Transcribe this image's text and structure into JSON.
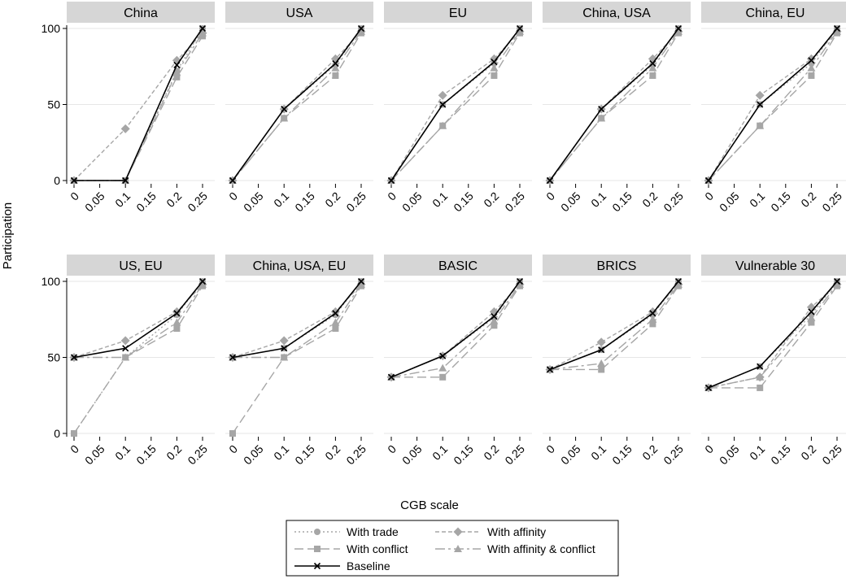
{
  "y_axis_label": "Participation",
  "x_axis_label": "CGB scale",
  "colors": {
    "panel_header": "#d6d6d6",
    "grid": "#e6e6e6",
    "gray": "#a6a6a6",
    "baseline": "#000000"
  },
  "chart_data": {
    "type": "line",
    "layout": "small multiples 2x5",
    "grid": true,
    "legend_position": "bottom-center",
    "xlabel": "CGB scale",
    "ylabel": "Participation",
    "xlim": [
      0,
      0.25
    ],
    "ylim": [
      0,
      100
    ],
    "x_ticks": [
      "0",
      "0.05",
      "0.1",
      "0.15",
      "0.2",
      "0.25"
    ],
    "y_ticks": [
      "0",
      "50",
      "100"
    ],
    "legend": [
      {
        "key": "trade",
        "label": "With trade",
        "style": "dotted",
        "marker": "circle"
      },
      {
        "key": "affinity",
        "label": "With affinity",
        "style": "dashed",
        "marker": "diamond"
      },
      {
        "key": "conflict",
        "label": "With conflict",
        "style": "longdash",
        "marker": "square"
      },
      {
        "key": "affconf",
        "label": "With affinity & conflict",
        "style": "dashdot",
        "marker": "triangle"
      },
      {
        "key": "baseline",
        "label": "Baseline",
        "style": "solid",
        "marker": "x"
      }
    ],
    "x": [
      0,
      0.1,
      0.2,
      0.25
    ],
    "panels": [
      {
        "title": "China",
        "series": {
          "trade": [
            0,
            0,
            72,
            100
          ],
          "affinity": [
            0,
            34,
            79,
            97
          ],
          "conflict": [
            0,
            0,
            68,
            95
          ],
          "affconf": [
            0,
            0,
            71,
            97
          ],
          "baseline": [
            0,
            0,
            76,
            100
          ]
        }
      },
      {
        "title": "USA",
        "series": {
          "trade": [
            0,
            47,
            76,
            100
          ],
          "affinity": [
            0,
            47,
            80,
            98
          ],
          "conflict": [
            0,
            41,
            69,
            97
          ],
          "affconf": [
            0,
            41,
            74,
            98
          ],
          "baseline": [
            0,
            47,
            77,
            100
          ]
        }
      },
      {
        "title": "EU",
        "series": {
          "trade": [
            0,
            50,
            77,
            100
          ],
          "affinity": [
            0,
            56,
            80,
            98
          ],
          "conflict": [
            0,
            36,
            69,
            97
          ],
          "affconf": [
            0,
            36,
            74,
            98
          ],
          "baseline": [
            0,
            50,
            78,
            100
          ]
        }
      },
      {
        "title": "China, USA",
        "series": {
          "trade": [
            0,
            47,
            76,
            100
          ],
          "affinity": [
            0,
            47,
            80,
            98
          ],
          "conflict": [
            0,
            41,
            69,
            97
          ],
          "affconf": [
            0,
            41,
            74,
            98
          ],
          "baseline": [
            0,
            47,
            77,
            100
          ]
        }
      },
      {
        "title": "China, EU",
        "series": {
          "trade": [
            0,
            50,
            77,
            100
          ],
          "affinity": [
            0,
            56,
            80,
            98
          ],
          "conflict": [
            0,
            36,
            69,
            97
          ],
          "affconf": [
            0,
            36,
            74,
            98
          ],
          "baseline": [
            0,
            50,
            79,
            100
          ]
        }
      },
      {
        "title": "US, EU",
        "series": {
          "trade": [
            0,
            50,
            78,
            100
          ],
          "affinity": [
            50,
            61,
            80,
            98
          ],
          "conflict": [
            0,
            50,
            69,
            97
          ],
          "affconf": [
            50,
            50,
            73,
            98
          ],
          "baseline": [
            50,
            56,
            79,
            100
          ]
        }
      },
      {
        "title": "China, USA, EU",
        "series": {
          "trade": [
            50,
            56,
            78,
            100
          ],
          "affinity": [
            50,
            61,
            80,
            98
          ],
          "conflict": [
            0,
            50,
            69,
            97
          ],
          "affconf": [
            50,
            50,
            73,
            98
          ],
          "baseline": [
            50,
            56,
            79,
            100
          ]
        }
      },
      {
        "title": "BASIC",
        "series": {
          "trade": [
            37,
            51,
            76,
            100
          ],
          "affinity": [
            37,
            51,
            80,
            98
          ],
          "conflict": [
            37,
            37,
            71,
            97
          ],
          "affconf": [
            37,
            43,
            74,
            98
          ],
          "baseline": [
            37,
            51,
            77,
            100
          ]
        }
      },
      {
        "title": "BRICS",
        "series": {
          "trade": [
            42,
            55,
            78,
            100
          ],
          "affinity": [
            42,
            60,
            80,
            98
          ],
          "conflict": [
            42,
            42,
            72,
            97
          ],
          "affconf": [
            42,
            46,
            75,
            98
          ],
          "baseline": [
            42,
            55,
            79,
            100
          ]
        }
      },
      {
        "title": "Vulnerable 30",
        "series": {
          "trade": [
            30,
            44,
            78,
            100
          ],
          "affinity": [
            30,
            37,
            83,
            98
          ],
          "conflict": [
            30,
            30,
            73,
            97
          ],
          "affconf": [
            30,
            37,
            76,
            98
          ],
          "baseline": [
            30,
            44,
            80,
            100
          ]
        }
      }
    ]
  }
}
